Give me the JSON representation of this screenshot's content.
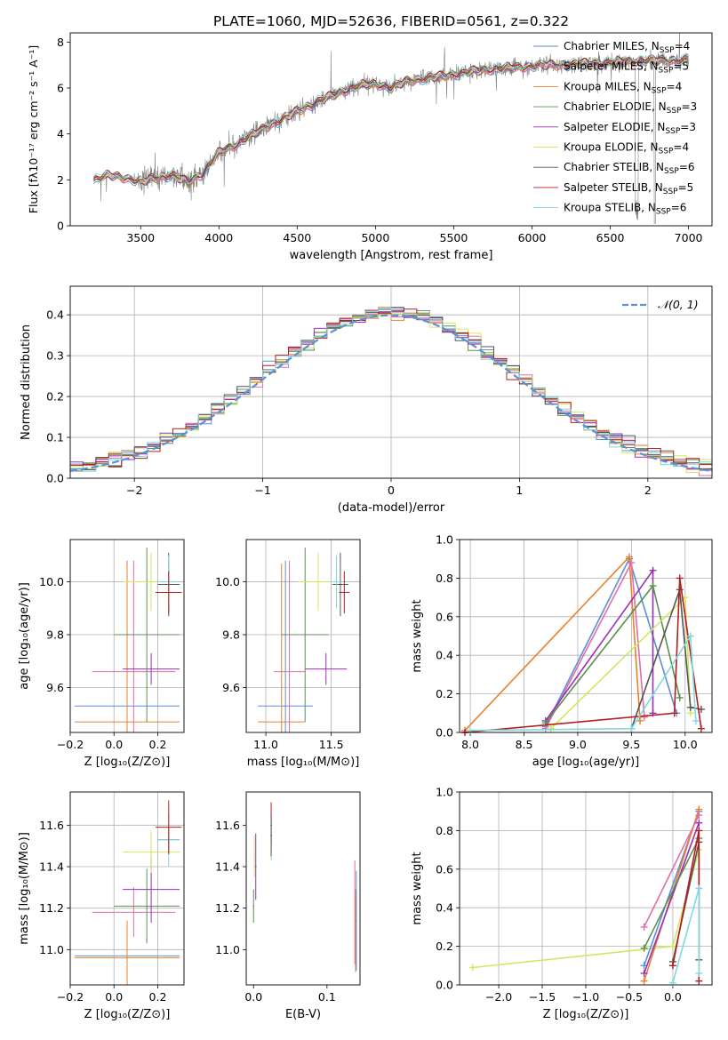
{
  "figure": {
    "title": "PLATE=1060, MJD=52636, FIBERID=0561, z=0.322"
  },
  "colors": {
    "Chabrier MILES": "#5b8fd6",
    "Salpeter MILES": "#e06fa8",
    "Kroupa MILES": "#e8802c",
    "Chabrier ELODIE": "#5a9050",
    "Salpeter ELODIE": "#9a2fb4",
    "Kroupa ELODIE": "#cfe860",
    "Chabrier STELIB": "#555555",
    "Salpeter STELIB": "#b81c1c",
    "Kroupa STELIB": "#7fd8de",
    "data": "#808080",
    "normal": "#5b8fd6"
  },
  "chart_data": [
    {
      "id": "spectrum",
      "type": "line",
      "xlabel": "wavelength [Angstrom, rest frame]",
      "ylabel": "Flux [f$_\\lambda$10$^{-17}$ erg cm$^{-2}$ s$^{-1}$ A$^{-1}$]",
      "ylabel_display": "Flux [fλ10⁻¹⁷ erg cm⁻² s⁻¹ A⁻¹]",
      "xlim": [
        3050,
        7150
      ],
      "ylim": [
        0,
        8.4
      ],
      "xticks": [
        3500,
        4000,
        4500,
        5000,
        5500,
        6000,
        6500,
        7000
      ],
      "yticks": [
        0,
        2,
        4,
        6,
        8
      ],
      "legend_position": "top-right",
      "continuum_points": [
        [
          3200,
          2.0
        ],
        [
          3300,
          2.2
        ],
        [
          3400,
          2.1
        ],
        [
          3500,
          1.9
        ],
        [
          3600,
          2.1
        ],
        [
          3700,
          2.2
        ],
        [
          3800,
          1.9
        ],
        [
          3900,
          2.3
        ],
        [
          4000,
          3.2
        ],
        [
          4100,
          3.5
        ],
        [
          4200,
          3.9
        ],
        [
          4300,
          4.3
        ],
        [
          4400,
          4.6
        ],
        [
          4500,
          5.0
        ],
        [
          4600,
          5.3
        ],
        [
          4700,
          5.6
        ],
        [
          4800,
          5.9
        ],
        [
          4900,
          6.1
        ],
        [
          5000,
          6.2
        ],
        [
          5100,
          6.0
        ],
        [
          5200,
          6.3
        ],
        [
          5300,
          6.4
        ],
        [
          5400,
          6.5
        ],
        [
          5500,
          6.6
        ],
        [
          5600,
          6.7
        ],
        [
          5700,
          6.8
        ],
        [
          5800,
          6.85
        ],
        [
          5900,
          6.9
        ],
        [
          6000,
          6.95
        ],
        [
          6100,
          7.0
        ],
        [
          6200,
          7.0
        ],
        [
          6300,
          7.05
        ],
        [
          6400,
          7.1
        ],
        [
          6500,
          7.1
        ],
        [
          6600,
          7.15
        ],
        [
          6700,
          7.2
        ],
        [
          6800,
          7.2
        ],
        [
          6900,
          7.2
        ],
        [
          7000,
          7.2
        ]
      ],
      "series": [
        {
          "name": "Chabrier MILES, N$_{SSP}$=4",
          "display": "Chabrier MILES, N",
          "sub": "SSP",
          "tail": "=4"
        },
        {
          "name": "Salpeter MILES, N$_{SSP}$=5",
          "display": "Salpeter MILES, N",
          "sub": "SSP",
          "tail": "=5"
        },
        {
          "name": "Kroupa MILES, N$_{SSP}$=4",
          "display": "Kroupa MILES, N",
          "sub": "SSP",
          "tail": "=4"
        },
        {
          "name": "Chabrier ELODIE, N$_{SSP}$=3",
          "display": "Chabrier ELODIE, N",
          "sub": "SSP",
          "tail": "=3"
        },
        {
          "name": "Salpeter ELODIE, N$_{SSP}$=3",
          "display": "Salpeter ELODIE, N",
          "sub": "SSP",
          "tail": "=3"
        },
        {
          "name": "Kroupa ELODIE, N$_{SSP}$=4",
          "display": "Kroupa ELODIE, N",
          "sub": "SSP",
          "tail": "=4"
        },
        {
          "name": "Chabrier STELIB, N$_{SSP}$=6",
          "display": "Chabrier STELIB, N",
          "sub": "SSP",
          "tail": "=6"
        },
        {
          "name": "Salpeter STELIB, N$_{SSP}$=5",
          "display": "Salpeter STELIB, N",
          "sub": "SSP",
          "tail": "=5"
        },
        {
          "name": "Kroupa STELIB, N$_{SSP}$=6",
          "display": "Kroupa STELIB, N",
          "sub": "SSP",
          "tail": "=6"
        }
      ]
    },
    {
      "id": "residuals",
      "type": "histogram",
      "xlabel": "(data-model)/error",
      "ylabel": "Normed distribution",
      "xlim": [
        -2.5,
        2.5
      ],
      "ylim": [
        0,
        0.47
      ],
      "xticks": [
        -2,
        -1,
        0,
        1,
        2
      ],
      "xtick_labels": [
        "−2",
        "−1",
        "0",
        "1",
        "2"
      ],
      "yticks": [
        0.0,
        0.1,
        0.2,
        0.3,
        0.4
      ],
      "ytick_labels": [
        "0.0",
        "0.1",
        "0.2",
        "0.3",
        "0.4"
      ],
      "grid": true,
      "legend": "𝒩(0, 1)",
      "legend_position": "top-right",
      "bin_width": 0.1,
      "bin_start": -2.5,
      "curve": "normal(0,1)"
    },
    {
      "id": "age_vs_Z",
      "type": "errorbar",
      "xlabel": "Z [log₁₀(Z/Z⊙)]",
      "ylabel": "age  [log₁₀(age/yr)]",
      "xlim": [
        -0.2,
        0.32
      ],
      "ylim": [
        9.43,
        10.16
      ],
      "xticks": [
        -0.2,
        0.0,
        0.2
      ],
      "xtick_labels": [
        "−0.2",
        "0.0",
        "0.2"
      ],
      "yticks": [
        9.6,
        9.8,
        10.0
      ],
      "ytick_labels": [
        "9.6",
        "9.8",
        "10.0"
      ],
      "grid": true,
      "points": [
        {
          "model": "Chabrier MILES",
          "x": 0.06,
          "xerr": 0.24,
          "y": 9.53,
          "yerr": 0.55
        },
        {
          "model": "Kroupa MILES",
          "x": 0.06,
          "xerr": 0.24,
          "y": 9.47,
          "yerr": 0.6
        },
        {
          "model": "Salpeter MILES",
          "x": 0.09,
          "xerr": 0.19,
          "y": 9.66,
          "yerr": 0.42
        },
        {
          "model": "Salpeter ELODIE",
          "x": 0.17,
          "xerr": 0.13,
          "y": 9.67,
          "yerr": 0.06
        },
        {
          "model": "Chabrier ELODIE",
          "x": 0.15,
          "xerr": 0.15,
          "y": 9.8,
          "yerr": 0.33
        },
        {
          "model": "Kroupa ELODIE",
          "x": 0.17,
          "xerr": 0.13,
          "y": 10.0,
          "yerr": 0.11
        },
        {
          "model": "Chabrier STELIB",
          "x": 0.25,
          "xerr": 0.05,
          "y": 9.99,
          "yerr": 0.12
        },
        {
          "model": "Kroupa STELIB",
          "x": 0.25,
          "xerr": 0.05,
          "y": 10.0,
          "yerr": 0.1
        },
        {
          "model": "Salpeter STELIB",
          "x": 0.25,
          "xerr": 0.06,
          "y": 9.96,
          "yerr": 0.08
        }
      ]
    },
    {
      "id": "age_vs_mass",
      "type": "errorbar",
      "xlabel": "mass [log₁₀(M/M⊙)]",
      "ylabel": "",
      "xlim": [
        10.85,
        11.72
      ],
      "ylim": [
        9.43,
        10.16
      ],
      "xticks": [
        11.0,
        11.5
      ],
      "xtick_labels": [
        "11.0",
        "11.5"
      ],
      "yticks": [
        9.6,
        9.8,
        10.0
      ],
      "ytick_labels": [
        "9.6",
        "9.8",
        "10.0"
      ],
      "grid": true,
      "points": [
        {
          "model": "Chabrier MILES",
          "x": 11.15,
          "xerr": 0.21,
          "y": 9.53,
          "yerr": 0.55
        },
        {
          "model": "Kroupa MILES",
          "x": 11.12,
          "xerr": 0.18,
          "y": 9.47,
          "yerr": 0.6
        },
        {
          "model": "Salpeter MILES",
          "x": 11.18,
          "xerr": 0.12,
          "y": 9.66,
          "yerr": 0.42
        },
        {
          "model": "Salpeter ELODIE",
          "x": 11.46,
          "xerr": 0.16,
          "y": 9.67,
          "yerr": 0.06
        },
        {
          "model": "Chabrier ELODIE",
          "x": 11.3,
          "xerr": 0.18,
          "y": 9.8,
          "yerr": 0.33
        },
        {
          "model": "Kroupa ELODIE",
          "x": 11.4,
          "xerr": 0.15,
          "y": 10.0,
          "yerr": 0.11
        },
        {
          "model": "Chabrier STELIB",
          "x": 11.57,
          "xerr": 0.06,
          "y": 9.99,
          "yerr": 0.12
        },
        {
          "model": "Kroupa STELIB",
          "x": 11.54,
          "xerr": 0.05,
          "y": 10.0,
          "yerr": 0.1
        },
        {
          "model": "Salpeter STELIB",
          "x": 11.6,
          "xerr": 0.04,
          "y": 9.96,
          "yerr": 0.08
        }
      ]
    },
    {
      "id": "weight_vs_age",
      "type": "line",
      "xlabel": "age  [log₁₀(age/yr)]",
      "ylabel": "mass weight",
      "xlim": [
        7.9,
        10.25
      ],
      "ylim": [
        0.0,
        1.0
      ],
      "xticks": [
        8.0,
        8.5,
        9.0,
        9.5,
        10.0
      ],
      "xtick_labels": [
        "8.0",
        "8.5",
        "9.0",
        "9.5",
        "10.0"
      ],
      "yticks": [
        0.0,
        0.2,
        0.4,
        0.6,
        0.8,
        1.0
      ],
      "ytick_labels": [
        "0.0",
        "0.2",
        "0.4",
        "0.6",
        "0.8",
        "1.0"
      ],
      "grid": true,
      "series": [
        {
          "model": "Chabrier MILES",
          "points": [
            [
              8.7,
              0.03
            ],
            [
              9.48,
              0.9
            ],
            [
              9.92,
              0.1
            ]
          ]
        },
        {
          "model": "Kroupa MILES",
          "points": [
            [
              7.95,
              0.01
            ],
            [
              9.48,
              0.91
            ],
            [
              9.58,
              0.06
            ]
          ]
        },
        {
          "model": "Salpeter MILES",
          "points": [
            [
              8.7,
              0.02
            ],
            [
              9.5,
              0.88
            ],
            [
              9.62,
              0.08
            ]
          ]
        },
        {
          "model": "Salpeter ELODIE",
          "points": [
            [
              8.7,
              0.06
            ],
            [
              9.7,
              0.84
            ],
            [
              9.7,
              0.1
            ]
          ]
        },
        {
          "model": "Chabrier ELODIE",
          "points": [
            [
              8.7,
              0.05
            ],
            [
              9.7,
              0.76
            ],
            [
              9.95,
              0.18
            ]
          ]
        },
        {
          "model": "Kroupa ELODIE",
          "points": [
            [
              8.75,
              0.02
            ],
            [
              10.0,
              0.7
            ],
            [
              10.05,
              0.1
            ]
          ]
        },
        {
          "model": "Chabrier STELIB",
          "points": [
            [
              9.5,
              0.02
            ],
            [
              9.95,
              0.74
            ],
            [
              10.05,
              0.13
            ],
            [
              10.15,
              0.12
            ]
          ]
        },
        {
          "model": "Salpeter STELIB",
          "points": [
            [
              7.95,
              0.0
            ],
            [
              9.9,
              0.1
            ],
            [
              9.95,
              0.8
            ],
            [
              10.15,
              0.02
            ]
          ]
        },
        {
          "model": "Kroupa STELIB",
          "points": [
            [
              8.0,
              0.01
            ],
            [
              9.5,
              0.02
            ],
            [
              10.05,
              0.5
            ],
            [
              10.1,
              0.06
            ]
          ]
        }
      ]
    },
    {
      "id": "mass_vs_Z",
      "type": "errorbar",
      "xlabel": "Z [log₁₀(Z/Z⊙)]",
      "ylabel": "mass [log₁₀(M/M⊙)]",
      "xlim": [
        -0.2,
        0.32
      ],
      "ylim": [
        10.83,
        11.76
      ],
      "xticks": [
        -0.2,
        0.0,
        0.2
      ],
      "xtick_labels": [
        "−0.2",
        "0.0",
        "0.2"
      ],
      "yticks": [
        11.0,
        11.2,
        11.4,
        11.6
      ],
      "ytick_labels": [
        "11.0",
        "11.2",
        "11.4",
        "11.6"
      ],
      "grid": true,
      "points": [
        {
          "model": "Chabrier MILES",
          "x": 0.06,
          "xerr": 0.24,
          "y": 10.97,
          "yerr": 0.16
        },
        {
          "model": "Kroupa MILES",
          "x": 0.06,
          "xerr": 0.24,
          "y": 10.96,
          "yerr": 0.18
        },
        {
          "model": "Salpeter MILES",
          "x": 0.09,
          "xerr": 0.19,
          "y": 11.18,
          "yerr": 0.12
        },
        {
          "model": "Chabrier ELODIE",
          "x": 0.15,
          "xerr": 0.15,
          "y": 11.21,
          "yerr": 0.18
        },
        {
          "model": "Salpeter ELODIE",
          "x": 0.17,
          "xerr": 0.13,
          "y": 11.29,
          "yerr": 0.16
        },
        {
          "model": "Kroupa ELODIE",
          "x": 0.17,
          "xerr": 0.13,
          "y": 11.47,
          "yerr": 0.1
        },
        {
          "model": "Chabrier STELIB",
          "x": 0.25,
          "xerr": 0.05,
          "y": 11.53,
          "yerr": 0.06
        },
        {
          "model": "Kroupa STELIB",
          "x": 0.25,
          "xerr": 0.05,
          "y": 11.53,
          "yerr": 0.13
        },
        {
          "model": "Salpeter STELIB",
          "x": 0.25,
          "xerr": 0.06,
          "y": 11.59,
          "yerr": 0.13
        }
      ]
    },
    {
      "id": "mass_vs_EBV",
      "type": "errorbar",
      "xlabel": "E(B-V)",
      "ylabel": "",
      "xlim": [
        -0.01,
        0.145
      ],
      "ylim": [
        10.83,
        11.76
      ],
      "xticks": [
        0.0,
        0.1
      ],
      "xtick_labels": [
        "0.0",
        "0.1"
      ],
      "yticks": [
        11.0,
        11.2,
        11.4,
        11.6
      ],
      "ytick_labels": [
        "11.0",
        "11.2",
        "11.4",
        "11.6"
      ],
      "grid": false,
      "points": [
        {
          "model": "Chabrier ELODIE",
          "x": 0.0,
          "xerr": 0.001,
          "y": 11.21,
          "yerr": 0.08
        },
        {
          "model": "Kroupa ELODIE",
          "x": 0.001,
          "xerr": 0.001,
          "y": 11.45,
          "yerr": 0.1
        },
        {
          "model": "Salpeter ELODIE",
          "x": 0.003,
          "xerr": 0.001,
          "y": 11.4,
          "yerr": 0.16
        },
        {
          "model": "Salpeter STELIB",
          "x": 0.024,
          "xerr": 0.001,
          "y": 11.6,
          "yerr": 0.11
        },
        {
          "model": "Kroupa STELIB",
          "x": 0.024,
          "xerr": 0.001,
          "y": 11.53,
          "yerr": 0.1
        },
        {
          "model": "Chabrier STELIB",
          "x": 0.024,
          "xerr": 0.001,
          "y": 11.55,
          "yerr": 0.1
        },
        {
          "model": "Salpeter MILES",
          "x": 0.138,
          "xerr": 0.001,
          "y": 11.18,
          "yerr": 0.25
        },
        {
          "model": "Kroupa MILES",
          "x": 0.139,
          "xerr": 0.001,
          "y": 11.09,
          "yerr": 0.2
        },
        {
          "model": "Chabrier MILES",
          "x": 0.14,
          "xerr": 0.001,
          "y": 11.14,
          "yerr": 0.24
        }
      ]
    },
    {
      "id": "weight_vs_Z",
      "type": "line",
      "xlabel": "Z [log₁₀(Z/Z⊙)]",
      "ylabel": "mass weight",
      "xlim": [
        -2.45,
        0.45
      ],
      "ylim": [
        0.0,
        1.0
      ],
      "xticks": [
        -2.0,
        -1.5,
        -1.0,
        -0.5,
        0.0
      ],
      "xtick_labels": [
        "−2.0",
        "−1.5",
        "−1.0",
        "−0.5",
        "0.0"
      ],
      "yticks": [
        0.0,
        0.2,
        0.4,
        0.6,
        0.8,
        1.0
      ],
      "ytick_labels": [
        "0.0",
        "0.2",
        "0.4",
        "0.6",
        "0.8",
        "1.0"
      ],
      "grid": true,
      "series": [
        {
          "model": "Kroupa ELODIE",
          "points": [
            [
              -2.3,
              0.09
            ],
            [
              0.0,
              0.2
            ],
            [
              0.3,
              0.7
            ]
          ]
        },
        {
          "model": "Chabrier MILES",
          "points": [
            [
              -0.33,
              0.1
            ],
            [
              0.3,
              0.9
            ]
          ]
        },
        {
          "model": "Kroupa MILES",
          "points": [
            [
              -0.33,
              0.02
            ],
            [
              0.3,
              0.91
            ]
          ]
        },
        {
          "model": "Salpeter MILES",
          "points": [
            [
              -0.33,
              0.3
            ],
            [
              0.3,
              0.88
            ]
          ]
        },
        {
          "model": "Salpeter ELODIE",
          "points": [
            [
              -0.33,
              0.06
            ],
            [
              0.3,
              0.84
            ]
          ]
        },
        {
          "model": "Chabrier ELODIE",
          "points": [
            [
              -0.33,
              0.19
            ],
            [
              0.3,
              0.76
            ]
          ]
        },
        {
          "model": "Chabrier STELIB",
          "points": [
            [
              0.0,
              0.12
            ],
            [
              0.3,
              0.74
            ],
            [
              0.3,
              0.13
            ]
          ]
        },
        {
          "model": "Salpeter STELIB",
          "points": [
            [
              0.0,
              0.1
            ],
            [
              0.3,
              0.8
            ],
            [
              0.3,
              0.02
            ]
          ]
        },
        {
          "model": "Kroupa STELIB",
          "points": [
            [
              0.0,
              0.01
            ],
            [
              0.3,
              0.5
            ],
            [
              0.3,
              0.06
            ]
          ]
        }
      ]
    }
  ]
}
